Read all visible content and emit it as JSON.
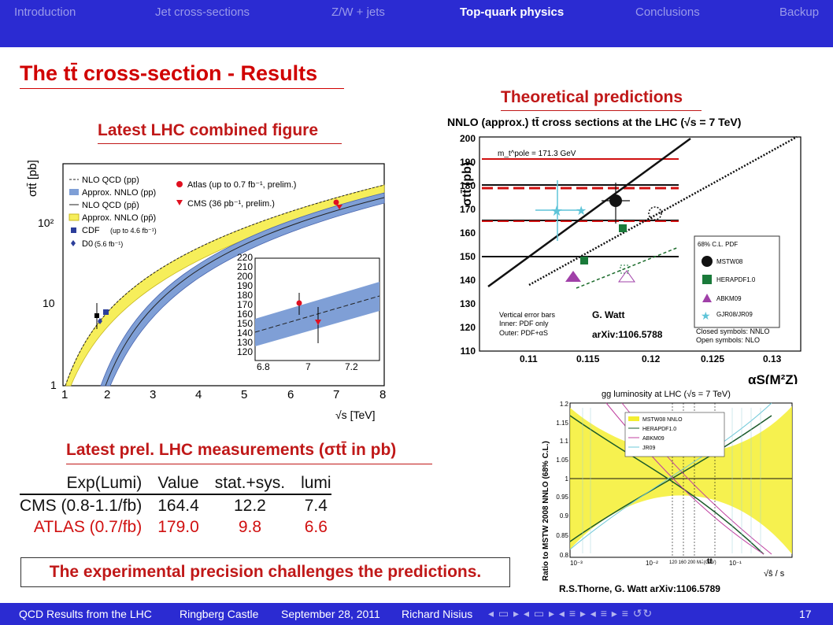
{
  "nav": {
    "items": [
      {
        "label": "Introduction",
        "active": false
      },
      {
        "label": "Jet cross-sections",
        "active": false
      },
      {
        "label": "Z/W + jets",
        "active": false
      },
      {
        "label": "Top-quark physics",
        "active": true
      },
      {
        "label": "Conclusions",
        "active": false
      },
      {
        "label": "Backup",
        "active": false
      }
    ]
  },
  "slide": {
    "title": "The tt̄ cross-section - Results",
    "left_heading": "Latest LHC combined figure",
    "right_heading": "Theoretical predictions",
    "measurements_heading": "Latest prel. LHC measurements (σtt̄ in pb)",
    "conclusion": "The experimental precision challenges the predictions."
  },
  "measurements": {
    "columns": [
      "Exp(Lumi)",
      "Value",
      "stat.+sys.",
      "lumi"
    ],
    "rows": [
      {
        "exp": "CMS (0.8-1.1/fb)",
        "value": "164.4",
        "statsys": "12.2",
        "lumi": "7.4",
        "color": "#111111"
      },
      {
        "exp": "ATLAS (0.7/fb)",
        "value": "179.0",
        "statsys": "9.8",
        "lumi": "6.6",
        "color": "#d01010"
      }
    ]
  },
  "fig_lhc": {
    "ylabel": "σtt̄ [pb]",
    "xlabel": "√s [TeV]",
    "ytick_labels": [
      "1",
      "10",
      "10²"
    ],
    "xtick_labels": [
      "1",
      "2",
      "3",
      "4",
      "5",
      "6",
      "7",
      "8"
    ],
    "legend": [
      "NLO QCD (pp)",
      "Approx. NNLO (pp)",
      "NLO QCD (pp̄)",
      "Approx. NNLO (pp̄)",
      "CDF",
      "D0"
    ],
    "legend_notes": {
      "cdf": "(up to 4.6 fb⁻¹)",
      "d0": "(5.6 fb⁻¹)"
    },
    "markers": [
      "Atlas (up to 0.7 fb⁻¹, prelim.)",
      "CMS (36 pb⁻¹, prelim.)"
    ],
    "inset_yticks": [
      "220",
      "210",
      "200",
      "190",
      "180",
      "170",
      "160",
      "150",
      "140",
      "130",
      "120"
    ],
    "inset_xticks": [
      "6.8",
      "7",
      "7.2"
    ],
    "colors": {
      "nnlo_pp_band": "#7f9fd6",
      "nnlo_ppbar_band": "#f6ee5a",
      "atlas": "#e01020",
      "cms": "#e01020",
      "cdf": "#2c3e9a"
    }
  },
  "fig_theory": {
    "title": "NNLO (approx.) tt̄ cross sections at the LHC (√s = 7 TeV)",
    "ylabel": "σtt̄ (pb)",
    "xlabel": "αS(M²Z)",
    "mass_label": "m_t^pole = 171.3 GeV",
    "ytick_labels": [
      "110",
      "120",
      "130",
      "140",
      "150",
      "160",
      "170",
      "180",
      "190",
      "200"
    ],
    "xtick_labels": [
      "0.11",
      "0.115",
      "0.12",
      "0.125",
      "0.13"
    ],
    "legend_title": "68% C.L. PDF",
    "legend": [
      "MSTW08",
      "HERAPDF1.0",
      "ABKM09",
      "GJR08/JR09"
    ],
    "legend_notes": [
      "Closed symbols: NNLO",
      "Open symbols: NLO"
    ],
    "error_note": [
      "Vertical error bars",
      "Inner: PDF only",
      "Outer: PDF+αS"
    ],
    "author": "G. Watt",
    "arxiv": "arXiv:1106.5788",
    "chart_data": {
      "type": "scatter",
      "xlim": [
        0.105,
        0.13
      ],
      "ylim": [
        110,
        200
      ],
      "series": [
        {
          "name": "MSTW08",
          "x": [
            0.1171
          ],
          "y": [
            173
          ]
        },
        {
          "name": "HERAPDF1.0",
          "x": [
            0.1176
          ],
          "y": [
            161
          ]
        },
        {
          "name": "ABKM09",
          "x": [
            0.1135
          ],
          "y": [
            141
          ]
        },
        {
          "name": "GJR08/JR09",
          "x": [
            0.1124
          ],
          "y": [
            169
          ]
        }
      ]
    }
  },
  "fig_lumi": {
    "title": "gg luminosity at LHC (√s = 7 TeV)",
    "ylabel": "Ratio to MSTW 2008 NNLO (68% C.L.)",
    "xlabel": "√ŝ / s",
    "ytick_labels": [
      "0.8",
      "0.85",
      "0.9",
      "0.95",
      "1",
      "1.05",
      "1.1",
      "1.15",
      "1.2"
    ],
    "xtick_labels": [
      "10⁻³",
      "10⁻²",
      "10⁻¹"
    ],
    "mass_ticks": "120 160 200 Mₜₜ̄(GeV)",
    "tt_label": "tt̄",
    "legend": [
      "MSTW08 NNLO",
      "HERAPDF1.0",
      "ABKM09",
      "JR09"
    ],
    "caption": "R.S.Thorne, G. Watt arXiv:1106.5789"
  },
  "footer": {
    "items": [
      "QCD Results from the LHC",
      "Ringberg Castle",
      "September 28, 2011",
      "Richard Nisius"
    ],
    "nav_symbols": "◂ ▭ ▸ ◂ ▭ ▸ ◂ ≡ ▸ ◂ ≡ ▸   ≡   ↺↻",
    "page": "17"
  }
}
